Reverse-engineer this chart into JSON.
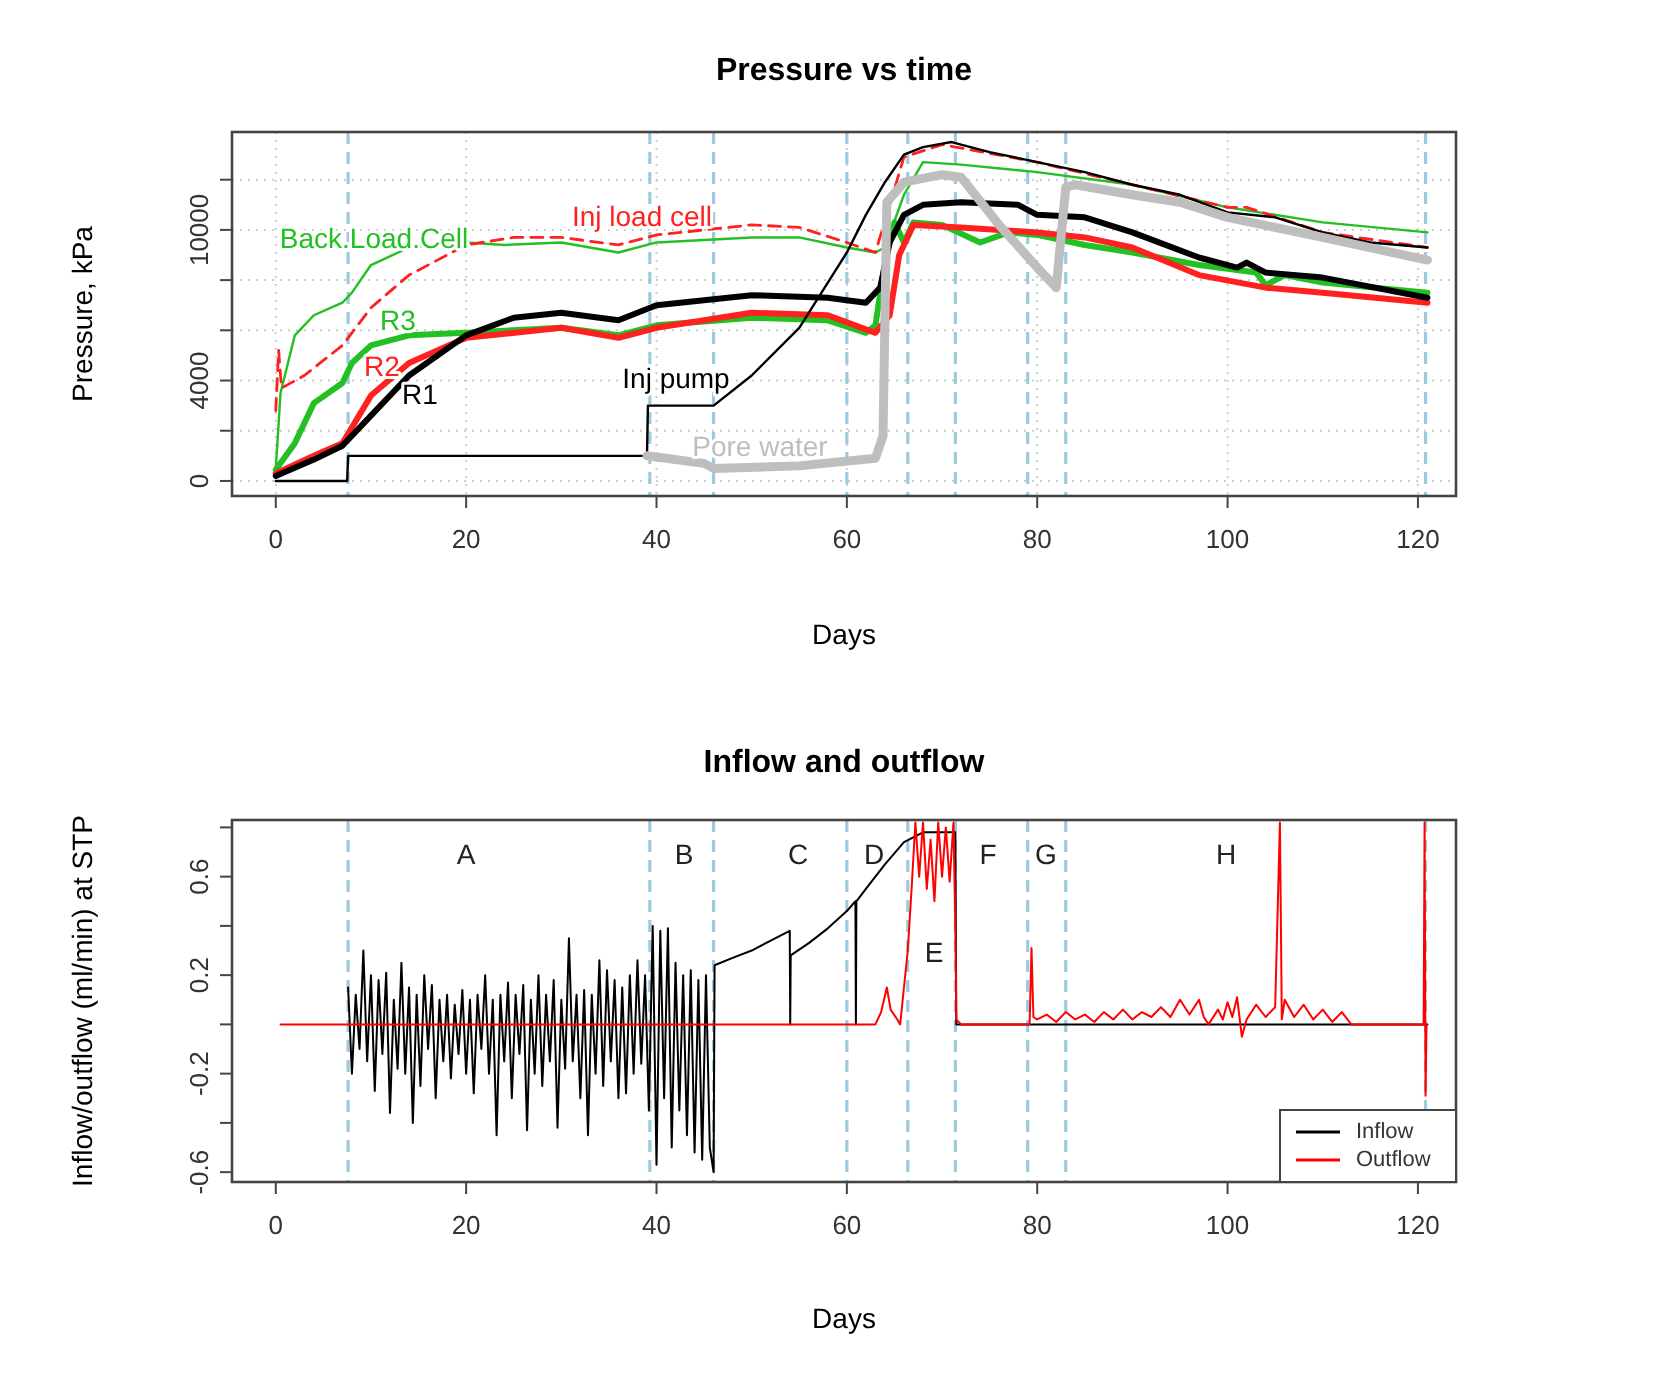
{
  "chart_data": [
    {
      "type": "line",
      "title": "Pressure vs time",
      "xlabel": "Days",
      "ylabel": "Pressure, kPa",
      "xlim": [
        -4.6,
        124
      ],
      "ylim": [
        -600,
        13900
      ],
      "xticks": [
        0,
        20,
        40,
        60,
        80,
        100,
        120
      ],
      "yticks": [
        0,
        {
          "value": 2000,
          "label": null
        },
        4000,
        {
          "value": 6000,
          "label": null
        },
        {
          "value": 8000,
          "label": null
        },
        10000,
        {
          "value": 12000,
          "label": null
        }
      ],
      "grid": true,
      "legend": false,
      "ref_lines": [
        {
          "axis": "x",
          "value": 7.6,
          "color": "#9ecae1",
          "line_style": "dashed"
        },
        {
          "axis": "x",
          "value": 39.3,
          "color": "#9ecae1",
          "line_style": "dashed"
        },
        {
          "axis": "x",
          "value": 46,
          "color": "#9ecae1",
          "line_style": "dashed"
        },
        {
          "axis": "x",
          "value": 60,
          "color": "#9ecae1",
          "line_style": "dashed"
        },
        {
          "axis": "x",
          "value": 66.4,
          "color": "#9ecae1",
          "line_style": "dashed"
        },
        {
          "axis": "x",
          "value": 71.4,
          "color": "#9ecae1",
          "line_style": "dashed"
        },
        {
          "axis": "x",
          "value": 79,
          "color": "#9ecae1",
          "line_style": "dashed"
        },
        {
          "axis": "x",
          "value": 83,
          "color": "#9ecae1",
          "line_style": "dashed"
        },
        {
          "axis": "x",
          "value": 120.8,
          "color": "#9ecae1",
          "line_style": "dashed"
        }
      ],
      "series": [
        {
          "name": "Back.Load.Cell",
          "color": "#22c022",
          "x": [
            0,
            0.5,
            2,
            4,
            7,
            8,
            10,
            14,
            20,
            24,
            30,
            36,
            40,
            50,
            55,
            60,
            63,
            64,
            66,
            68,
            72,
            80,
            90,
            100,
            110,
            121
          ],
          "values": [
            500,
            3500,
            5800,
            6600,
            7100,
            7500,
            8600,
            9300,
            9500,
            9400,
            9500,
            9100,
            9500,
            9700,
            9700,
            9300,
            9100,
            9300,
            11400,
            12700,
            12600,
            12300,
            11800,
            10900,
            10300,
            9900
          ]
        },
        {
          "name": "Inj load cell",
          "color": "#ff2020",
          "line_style": "dashed",
          "x": [
            0,
            0.3,
            0.6,
            3,
            7,
            10,
            14,
            20,
            25,
            30,
            36,
            40,
            50,
            55,
            60,
            63,
            66,
            70,
            80,
            90,
            100,
            102,
            110,
            121
          ],
          "values": [
            2800,
            5200,
            3700,
            4200,
            5400,
            6900,
            8200,
            9400,
            9700,
            9700,
            9400,
            9800,
            10200,
            10100,
            9500,
            9100,
            12900,
            13400,
            12700,
            11800,
            10900,
            10900,
            9900,
            9300
          ]
        },
        {
          "name": "R3",
          "color": "#22c022",
          "x": [
            0,
            2,
            4,
            7,
            8,
            10,
            14,
            20,
            30,
            36,
            40,
            50,
            58,
            62,
            63,
            64,
            65,
            66,
            67,
            70,
            74,
            77,
            80,
            85,
            90,
            97,
            103,
            104,
            106,
            110,
            121
          ],
          "values": [
            450,
            1500,
            3100,
            3900,
            4700,
            5400,
            5800,
            5900,
            6100,
            5800,
            6200,
            6500,
            6400,
            5900,
            6200,
            8700,
            10300,
            9500,
            10300,
            10200,
            9500,
            9900,
            9800,
            9400,
            9100,
            8600,
            8300,
            7800,
            8200,
            7900,
            7500
          ]
        },
        {
          "name": "R2",
          "color": "#ff2020",
          "x": [
            0,
            4,
            7,
            10,
            14,
            20,
            30,
            36,
            40,
            50,
            58,
            63,
            64.5,
            65.5,
            67,
            72,
            80,
            85,
            90,
            97,
            104,
            110,
            121
          ],
          "values": [
            300,
            1000,
            1500,
            3400,
            4700,
            5700,
            6100,
            5700,
            6100,
            6700,
            6600,
            5900,
            6600,
            9000,
            10200,
            10100,
            9900,
            9700,
            9300,
            8200,
            7700,
            7500,
            7100
          ]
        },
        {
          "name": "R1",
          "color": "#000000",
          "x": [
            0,
            4,
            7,
            10,
            14,
            20,
            25,
            30,
            36,
            40,
            50,
            58,
            62,
            63.5,
            64.5,
            66,
            68,
            72,
            78,
            80,
            85,
            90,
            97,
            101,
            102,
            104,
            110,
            121
          ],
          "values": [
            200,
            850,
            1400,
            2600,
            4200,
            5800,
            6500,
            6700,
            6400,
            7000,
            7400,
            7300,
            7100,
            7700,
            9500,
            10600,
            11000,
            11100,
            11000,
            10600,
            10500,
            9900,
            8900,
            8500,
            8700,
            8300,
            8100,
            7300
          ]
        },
        {
          "name": "Inj pump",
          "color": "#000000",
          "x": [
            0,
            7.5,
            7.6,
            39,
            39.1,
            46,
            50,
            55,
            58,
            60,
            62,
            64,
            66,
            68,
            71,
            75,
            80,
            85,
            90,
            95,
            100,
            105,
            110,
            115,
            121
          ],
          "values": [
            0,
            0,
            1000,
            1000,
            3000,
            3000,
            4200,
            6100,
            7900,
            9100,
            10600,
            11900,
            13000,
            13300,
            13500,
            13100,
            12700,
            12300,
            11800,
            11400,
            10700,
            10500,
            9900,
            9500,
            9300
          ]
        },
        {
          "name": "Pore water",
          "color": "#bebebe",
          "x": [
            39,
            45,
            46,
            55,
            63,
            63.8,
            64.2,
            66,
            70,
            72,
            76,
            80,
            82,
            83,
            84,
            90,
            95,
            100,
            110,
            121
          ],
          "values": [
            1000,
            700,
            500,
            600,
            900,
            1800,
            11100,
            11900,
            12200,
            12100,
            10200,
            8500,
            7700,
            11700,
            11800,
            11400,
            11100,
            10500,
            9700,
            8800
          ]
        }
      ]
    },
    {
      "type": "line",
      "title": "Inflow and outflow",
      "xlabel": "Days",
      "ylabel": "Inflow/outflow (ml/min) at STP",
      "xlim": [
        -4.6,
        124
      ],
      "ylim": [
        -0.64,
        0.83
      ],
      "xticks": [
        0,
        20,
        40,
        60,
        80,
        100,
        120
      ],
      "yticks": [
        -0.6,
        {
          "value": -0.4,
          "label": null
        },
        -0.2,
        {
          "value": 0,
          "label": null
        },
        0.2,
        {
          "value": 0.4,
          "label": null
        },
        0.6,
        {
          "value": 0.8,
          "label": null
        }
      ],
      "legend": "bottom right",
      "ref_lines": [
        {
          "axis": "x",
          "value": 7.6,
          "color": "#9ecae1",
          "line_style": "dashed"
        },
        {
          "axis": "x",
          "value": 39.3,
          "color": "#9ecae1",
          "line_style": "dashed"
        },
        {
          "axis": "x",
          "value": 46,
          "color": "#9ecae1",
          "line_style": "dashed"
        },
        {
          "axis": "x",
          "value": 60,
          "color": "#9ecae1",
          "line_style": "dashed"
        },
        {
          "axis": "x",
          "value": 66.4,
          "color": "#9ecae1",
          "line_style": "dashed"
        },
        {
          "axis": "x",
          "value": 71.4,
          "color": "#9ecae1",
          "line_style": "dashed"
        },
        {
          "axis": "x",
          "value": 79,
          "color": "#9ecae1",
          "line_style": "dashed"
        },
        {
          "axis": "x",
          "value": 83,
          "color": "#9ecae1",
          "line_style": "dashed"
        },
        {
          "axis": "x",
          "value": 120.8,
          "color": "#9ecae1",
          "line_style": "dashed"
        }
      ],
      "annotations": [
        "A",
        "B",
        "C",
        "D",
        "E",
        "F",
        "G",
        "H"
      ],
      "series": [
        {
          "name": "Inflow",
          "color": "#000000",
          "x": [
            7.6,
            8.0,
            8.4,
            8.8,
            9.2,
            9.6,
            10.0,
            10.4,
            10.8,
            11.2,
            11.6,
            12.0,
            12.4,
            12.8,
            13.2,
            13.6,
            14.0,
            14.4,
            14.8,
            15.2,
            15.6,
            16.0,
            16.4,
            16.8,
            17.2,
            17.6,
            18.0,
            18.4,
            18.8,
            19.2,
            19.6,
            20.0,
            20.4,
            20.8,
            21.2,
            21.6,
            22.0,
            22.4,
            22.8,
            23.2,
            23.6,
            24.0,
            24.4,
            24.8,
            25.2,
            25.6,
            26.0,
            26.4,
            26.8,
            27.2,
            27.6,
            28.0,
            28.4,
            28.8,
            29.2,
            29.6,
            30.0,
            30.4,
            30.8,
            31.2,
            31.6,
            32.0,
            32.4,
            32.8,
            33.2,
            33.6,
            34.0,
            34.4,
            34.8,
            35.2,
            35.6,
            36.0,
            36.4,
            36.8,
            37.2,
            37.6,
            38.0,
            38.4,
            38.8,
            39.2,
            39.6,
            40.0,
            40.4,
            40.8,
            41.2,
            41.6,
            42.0,
            42.4,
            42.8,
            43.2,
            43.6,
            44.0,
            44.4,
            44.8,
            45.2,
            45.6,
            46.0,
            46.1,
            48,
            50,
            52,
            54,
            54.05,
            54.1,
            56,
            58,
            60,
            60.9,
            60.95,
            61.0,
            62,
            64,
            66,
            68,
            71.4,
            71.5,
            121
          ],
          "values": [
            0.15,
            -0.2,
            0.12,
            -0.1,
            0.3,
            -0.15,
            0.2,
            -0.27,
            0.18,
            -0.12,
            0.21,
            -0.36,
            0.1,
            -0.18,
            0.25,
            -0.2,
            0.15,
            -0.4,
            0.12,
            -0.25,
            0.2,
            -0.1,
            0.16,
            -0.3,
            0.1,
            -0.15,
            0.12,
            -0.22,
            0.08,
            -0.12,
            0.14,
            -0.2,
            0.1,
            -0.28,
            0.12,
            -0.1,
            0.2,
            -0.2,
            0.1,
            -0.45,
            0.12,
            -0.15,
            0.17,
            -0.3,
            0.12,
            -0.12,
            0.16,
            -0.43,
            0.1,
            -0.2,
            0.2,
            -0.25,
            0.12,
            -0.15,
            0.18,
            -0.42,
            0.1,
            -0.18,
            0.35,
            -0.15,
            0.12,
            -0.3,
            0.14,
            -0.45,
            0.12,
            -0.2,
            0.26,
            -0.25,
            0.22,
            -0.15,
            0.18,
            -0.3,
            0.15,
            -0.28,
            0.2,
            -0.2,
            0.26,
            -0.16,
            0.2,
            -0.35,
            0.4,
            -0.57,
            0.38,
            -0.3,
            0.39,
            -0.5,
            0.25,
            -0.35,
            0.2,
            -0.45,
            0.22,
            -0.52,
            0.18,
            -0.55,
            0.2,
            -0.5,
            -0.6,
            0.24,
            0.27,
            0.3,
            0.34,
            0.38,
            0,
            0.28,
            0.33,
            0.39,
            0.46,
            0.5,
            0,
            0.5,
            0.55,
            0.65,
            0.74,
            0.78,
            0.78,
            0,
            0
          ]
        },
        {
          "name": "Outflow",
          "color": "#ff0000",
          "x": [
            0.5,
            63,
            63.6,
            64.2,
            64.6,
            65.3,
            65.6,
            66.4,
            66.8,
            67.2,
            67.6,
            68.0,
            68.4,
            68.8,
            69.2,
            69.6,
            70.0,
            70.4,
            70.8,
            71.2,
            71.4,
            71.5,
            72,
            79.2,
            79.4,
            79.6,
            80,
            81,
            82,
            83,
            84,
            85,
            86,
            87,
            88,
            89,
            90,
            91,
            92,
            93,
            94,
            95,
            96,
            97,
            97.5,
            98,
            99,
            99.5,
            100,
            100.5,
            101,
            101.5,
            102,
            103,
            104,
            105,
            105.5,
            105.7,
            106,
            107,
            108,
            109,
            110,
            111,
            112,
            113,
            120.6,
            120.7,
            120.8,
            120.9
          ],
          "values": [
            0,
            0,
            0.05,
            0.15,
            0.06,
            0.02,
            0,
            0.3,
            0.55,
            0.82,
            0.6,
            0.82,
            0.55,
            0.75,
            0.5,
            0.82,
            0.6,
            0.8,
            0.58,
            0.82,
            0.4,
            0.02,
            0,
            0,
            0.31,
            0.03,
            0.02,
            0.04,
            0.01,
            0.05,
            0.02,
            0.04,
            0.01,
            0.05,
            0.02,
            0.06,
            0.02,
            0.05,
            0.03,
            0.07,
            0.03,
            0.1,
            0.04,
            0.1,
            0.03,
            0,
            0.06,
            0.02,
            0.09,
            0.03,
            0.11,
            -0.05,
            0.02,
            0.08,
            0.03,
            0.07,
            0.82,
            0.02,
            0.1,
            0.03,
            0.08,
            0.02,
            0.06,
            0.01,
            0.05,
            0,
            0,
            0.82,
            -0.29,
            0
          ]
        }
      ]
    }
  ]
}
